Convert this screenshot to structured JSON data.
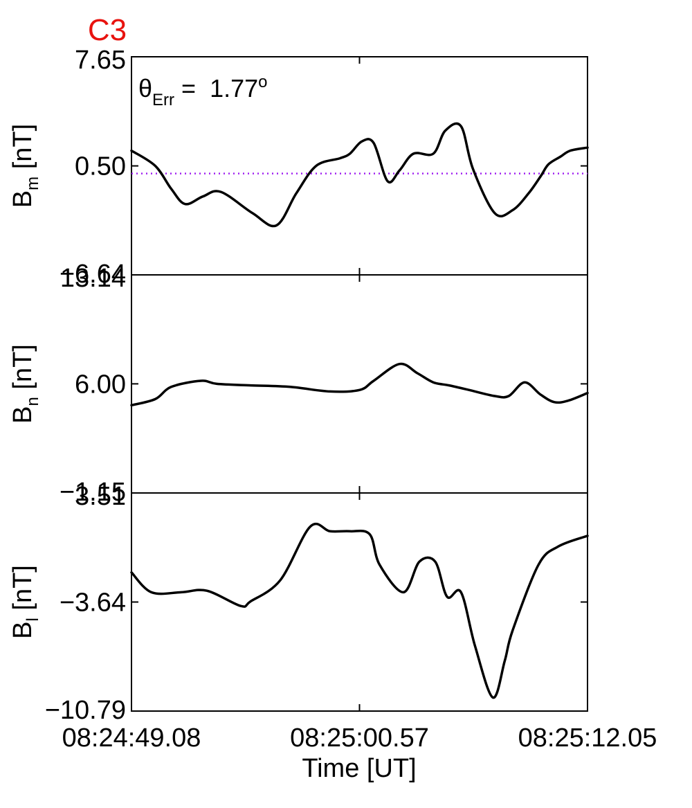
{
  "title": "C3",
  "title_color": "#e8130f",
  "annotation": {
    "symbol": "θ",
    "subscript": "Err",
    "equals": " =  ",
    "value": "1.77",
    "superscript": "o"
  },
  "reference_line_color": "#a020f0",
  "x_label": "Time [UT]",
  "x_ticks": [
    "08:24:49.08",
    "08:25:00.57",
    "08:25:12.05"
  ],
  "panels": [
    {
      "label_main": "B",
      "label_sub": "m",
      "label_unit": " [nT]",
      "ticks": [
        "7.65",
        "0.50",
        "−6.64"
      ]
    },
    {
      "label_main": "B",
      "label_sub": "n",
      "label_unit": " [nT]",
      "ticks": [
        "13.14",
        "6.00",
        "−1.15"
      ]
    },
    {
      "label_main": "B",
      "label_sub": "l",
      "label_unit": " [nT]",
      "ticks": [
        "3.51",
        "−3.64",
        "−10.79"
      ]
    }
  ],
  "chart_data": {
    "type": "line",
    "xlabel": "Time [UT]",
    "x_tick_labels": [
      "08:24:49.08",
      "08:25:00.57",
      "08:25:12.05"
    ],
    "x_range_seconds": [
      0,
      22.97
    ],
    "x_unit": "seconds after 08:24:49.08",
    "panels": [
      {
        "ylabel": "Bm [nT]",
        "ylim": [
          -6.64,
          7.65
        ],
        "yticks": [
          7.65,
          0.5,
          -6.64
        ],
        "reference_line": {
          "y": 0.0,
          "style": "dotted"
        },
        "x": [
          0,
          1.2,
          2.0,
          2.7,
          3.6,
          4.5,
          6.1,
          7.3,
          8.3,
          9.3,
          10.5,
          11.0,
          11.6,
          12.2,
          12.9,
          13.5,
          14.2,
          15.2,
          15.8,
          16.6,
          17.2,
          18.3,
          19.2,
          20.0,
          20.6,
          21.0,
          21.6,
          22.1,
          22.97
        ],
        "y": [
          1.5,
          0.5,
          -1.0,
          -2.0,
          -1.5,
          -1.2,
          -2.6,
          -3.4,
          -1.3,
          0.5,
          1.0,
          1.3,
          2.1,
          2.0,
          -0.5,
          0.2,
          1.3,
          1.3,
          2.8,
          3.1,
          0.3,
          -2.6,
          -2.4,
          -1.3,
          -0.2,
          0.6,
          1.1,
          1.5,
          1.7
        ],
        "values_note": "approximate, read from curve shape"
      },
      {
        "ylabel": "Bn [nT]",
        "ylim": [
          -1.15,
          13.14
        ],
        "yticks": [
          13.14,
          6.0,
          -1.15
        ],
        "x": [
          0,
          1.2,
          2.0,
          3.5,
          4.3,
          6.0,
          8.0,
          10.0,
          11.5,
          12.2,
          13.5,
          14.4,
          15.2,
          16.0,
          17.0,
          18.3,
          19.0,
          19.8,
          20.6,
          21.3,
          22.0,
          22.97
        ],
        "y": [
          4.6,
          5.0,
          5.8,
          6.2,
          6.0,
          5.9,
          5.8,
          5.5,
          5.6,
          6.2,
          7.3,
          6.7,
          6.1,
          5.9,
          5.6,
          5.2,
          5.2,
          6.1,
          5.3,
          4.8,
          4.9,
          5.4
        ],
        "values_note": "approximate, read from curve shape"
      },
      {
        "ylabel": "Bl [nT]",
        "ylim": [
          -10.79,
          3.51
        ],
        "yticks": [
          3.51,
          -3.64,
          -10.79
        ],
        "x": [
          0,
          1.0,
          2.5,
          3.8,
          5.5,
          6.0,
          7.5,
          9.0,
          10.0,
          11.0,
          12.0,
          12.5,
          13.7,
          14.5,
          15.3,
          15.9,
          16.6,
          17.3,
          18.2,
          18.8,
          19.2,
          20.5,
          21.5,
          22.97
        ],
        "y": [
          -1.7,
          -3.0,
          -3.0,
          -2.9,
          -3.9,
          -3.6,
          -2.2,
          1.3,
          1.0,
          1.0,
          0.8,
          -1.2,
          -3.0,
          -1.0,
          -1.0,
          -3.3,
          -3.0,
          -6.5,
          -9.9,
          -7.5,
          -5.5,
          -1.2,
          0.0,
          0.7
        ],
        "values_note": "approximate, read from curve shape"
      }
    ]
  }
}
